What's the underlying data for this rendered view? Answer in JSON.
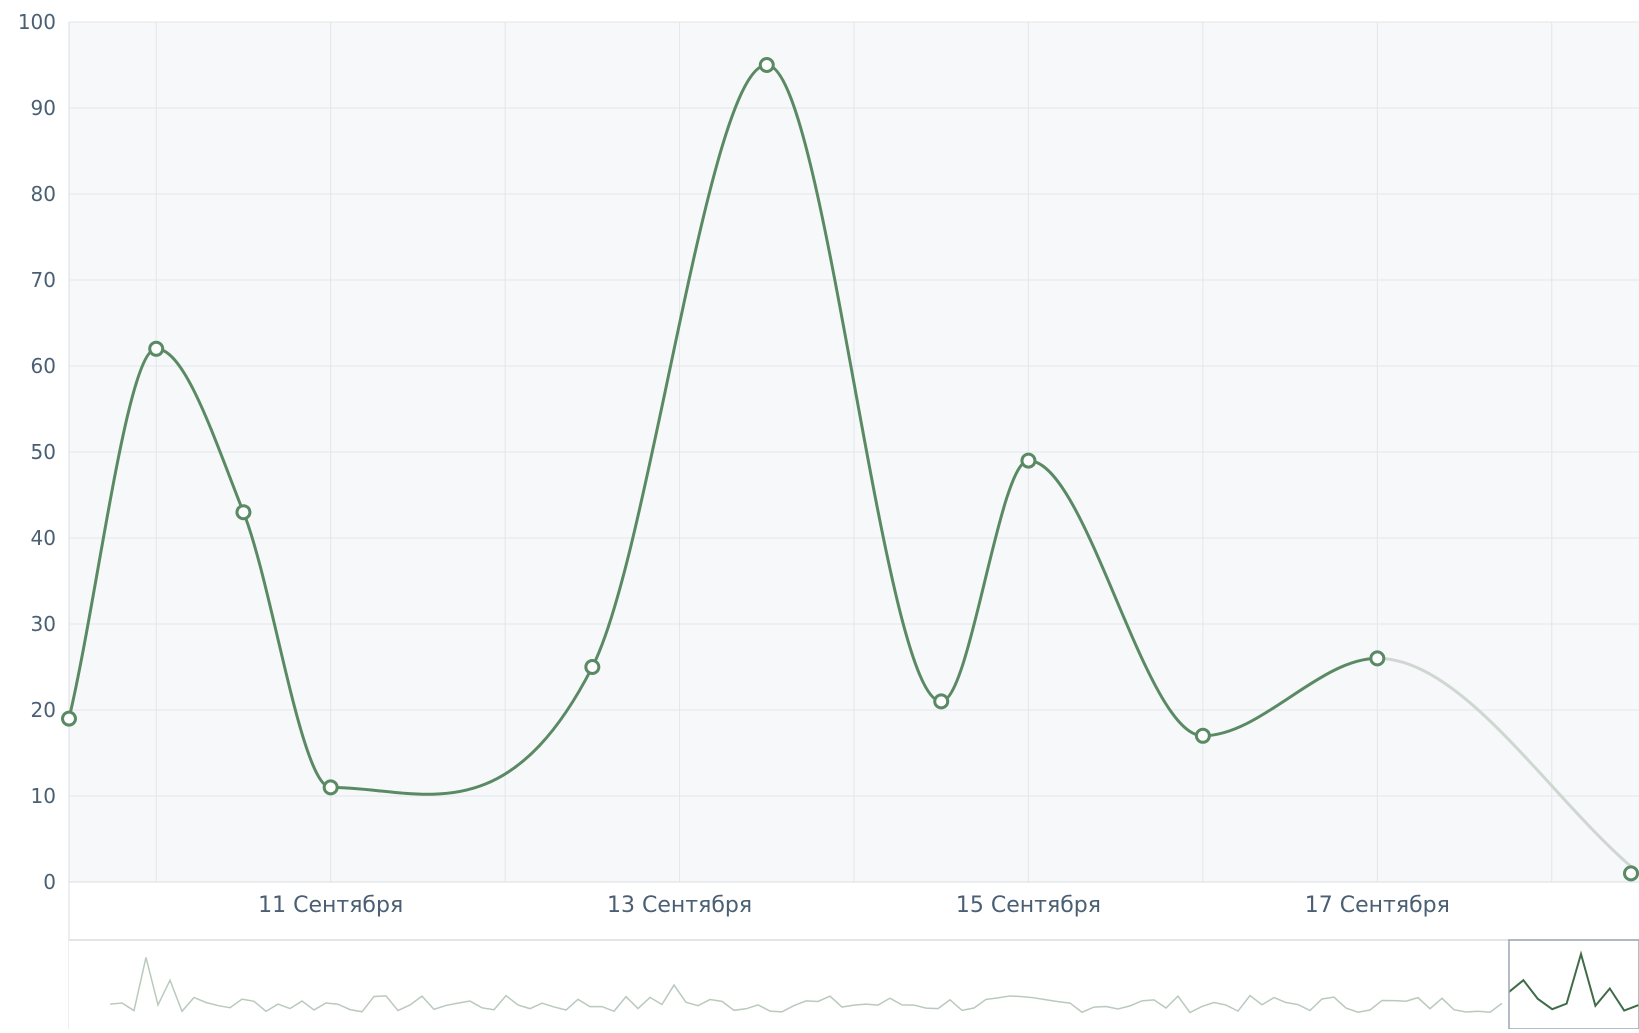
{
  "chart_data": {
    "type": "line",
    "title": "",
    "xlabel": "",
    "ylabel": "",
    "ylim": [
      0,
      100
    ],
    "y_ticks": [
      0,
      10,
      20,
      30,
      40,
      50,
      60,
      70,
      80,
      90,
      100
    ],
    "x_tick_labels": [
      "11 Сентября",
      "13 Сентября",
      "15 Сентября",
      "17 Сентября"
    ],
    "x_range": [
      "09.09 12:00",
      "18.09 12:00"
    ],
    "grid": true,
    "smooth": true,
    "series": [
      {
        "color": "#5a8a64",
        "points": [
          {
            "x": "09.09 12:00",
            "y": 19
          },
          {
            "x": "10.09 00:00",
            "y": 62
          },
          {
            "x": "10.09 12:00",
            "y": 43
          },
          {
            "x": "11.09 00:00",
            "y": 11
          },
          {
            "x": "12.09 12:00",
            "y": 25
          },
          {
            "x": "13.09 12:00",
            "y": 95
          },
          {
            "x": "14.09 12:00",
            "y": 21
          },
          {
            "x": "15.09 00:00",
            "y": 49
          },
          {
            "x": "16.09 00:00",
            "y": 17
          },
          {
            "x": "17.09 00:00",
            "y": 26
          },
          {
            "x": "18.09 12:00",
            "y": 1,
            "faded": true
          }
        ]
      }
    ],
    "navigator": {
      "series_color": "#b9cabc",
      "selected_color": "#3f6b48",
      "has_selection_window": true
    }
  },
  "colors": {
    "plot_background": "#f7f8fa",
    "grid": "#e3e6ea",
    "axis_text": "#4a5f73",
    "series": "#5a8a64",
    "faded_segment": "#cfd7d1",
    "marker_fill": "#ffffff"
  }
}
